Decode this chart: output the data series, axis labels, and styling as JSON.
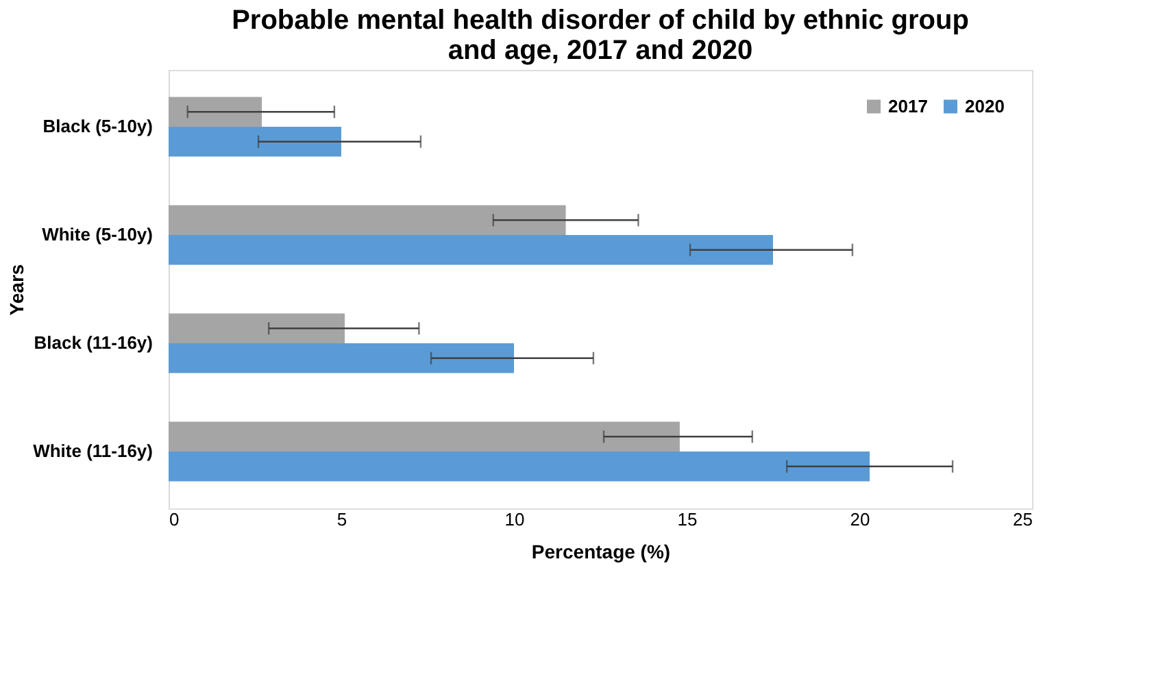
{
  "chart_data": {
    "type": "bar",
    "orientation": "horizontal",
    "title": "Probable mental health disorder of child by ethnic group and age, 2017 and 2020",
    "xlabel": "Percentage (%)",
    "ylabel": "Years",
    "categories": [
      "Black (5-10y)",
      "White (5-10y)",
      "Black (11-16y)",
      "White (11-16y)"
    ],
    "series": [
      {
        "name": "2017",
        "color": "#a5a5a5",
        "values": [
          2.7,
          11.5,
          5.1,
          14.8
        ],
        "errors": [
          [
            0.55,
            4.8
          ],
          [
            9.4,
            13.6
          ],
          [
            2.9,
            7.25
          ],
          [
            12.6,
            16.9
          ]
        ]
      },
      {
        "name": "2020",
        "color": "#5b9bd5",
        "values": [
          5.0,
          17.5,
          10.0,
          20.3
        ],
        "errors": [
          [
            2.6,
            7.3
          ],
          [
            15.1,
            19.8
          ],
          [
            7.6,
            12.3
          ],
          [
            17.9,
            22.7
          ]
        ]
      }
    ],
    "xlim": [
      0,
      25
    ],
    "xticks": [
      0,
      5,
      10,
      15,
      20,
      25
    ],
    "grid": false,
    "legend": "top right"
  }
}
